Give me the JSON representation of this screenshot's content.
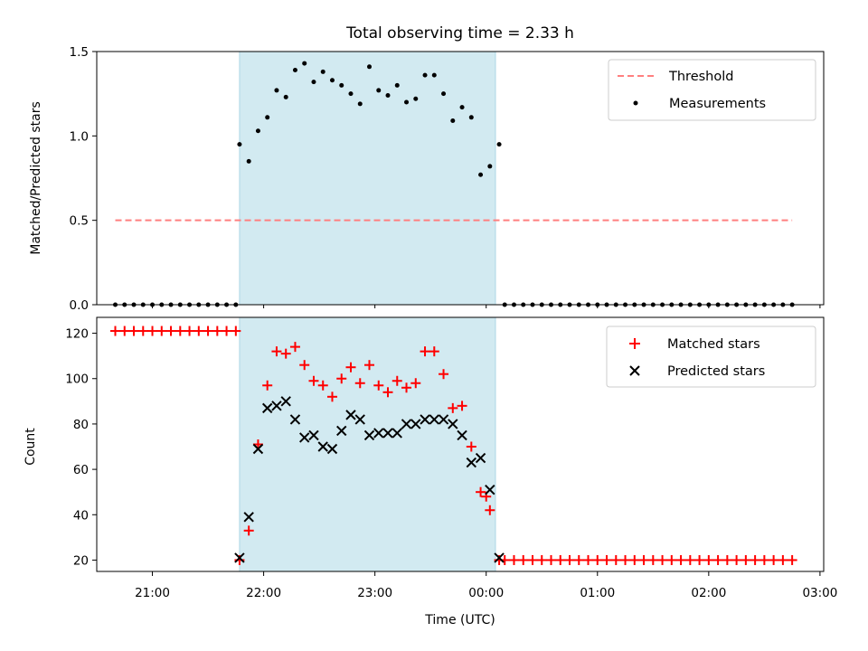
{
  "chart_data": [
    {
      "type": "scatter",
      "title": "Total observing time = 2.33 h",
      "xlabel": "",
      "ylabel": "Matched/Predicted stars",
      "ylim": [
        0,
        1.5
      ],
      "yticks": [
        "0.0",
        "0.5",
        "1.0",
        "1.5"
      ],
      "highlight_span": {
        "x": [
          "21:47",
          "00:05"
        ],
        "color": "#add8e6"
      },
      "threshold": {
        "name": "Threshold",
        "value": 0.5,
        "x": [
          "20:40",
          "02:45"
        ],
        "color": "#ff7f7f"
      },
      "series": [
        {
          "name": "Measurements",
          "color": "#000000",
          "marker": "dot",
          "x": [
            "20:40",
            "20:45",
            "20:50",
            "20:55",
            "21:00",
            "21:05",
            "21:10",
            "21:15",
            "21:20",
            "21:25",
            "21:30",
            "21:35",
            "21:40",
            "21:45",
            "21:47",
            "21:52",
            "21:57",
            "22:02",
            "22:07",
            "22:12",
            "22:17",
            "22:22",
            "22:27",
            "22:32",
            "22:37",
            "22:42",
            "22:47",
            "22:52",
            "22:57",
            "23:02",
            "23:07",
            "23:12",
            "23:17",
            "23:22",
            "23:27",
            "23:32",
            "23:37",
            "23:42",
            "23:47",
            "23:52",
            "23:57",
            "00:02",
            "00:07",
            "00:10",
            "00:15",
            "00:20",
            "00:25",
            "00:30",
            "00:35",
            "00:40",
            "00:45",
            "00:50",
            "00:55",
            "01:00",
            "01:05",
            "01:10",
            "01:15",
            "01:20",
            "01:25",
            "01:30",
            "01:35",
            "01:40",
            "01:45",
            "01:50",
            "01:55",
            "02:00",
            "02:05",
            "02:10",
            "02:15",
            "02:20",
            "02:25",
            "02:30",
            "02:35",
            "02:40",
            "02:45"
          ],
          "y": [
            0,
            0,
            0,
            0,
            0,
            0,
            0,
            0,
            0,
            0,
            0,
            0,
            0,
            0,
            0.95,
            0.85,
            1.03,
            1.11,
            1.27,
            1.23,
            1.39,
            1.43,
            1.32,
            1.38,
            1.33,
            1.3,
            1.25,
            1.19,
            1.41,
            1.27,
            1.24,
            1.3,
            1.2,
            1.22,
            1.36,
            1.36,
            1.25,
            1.09,
            1.17,
            1.11,
            0.77,
            0.82,
            0.95,
            0,
            0,
            0,
            0,
            0,
            0,
            0,
            0,
            0,
            0,
            0,
            0,
            0,
            0,
            0,
            0,
            0,
            0,
            0,
            0,
            0,
            0,
            0,
            0,
            0,
            0,
            0,
            0,
            0,
            0,
            0,
            0
          ]
        }
      ],
      "legend": {
        "position": "top-right",
        "entries": [
          "Threshold",
          "Measurements"
        ]
      }
    },
    {
      "type": "scatter",
      "title": "",
      "xlabel": "Time (UTC)",
      "ylabel": "Count",
      "ylim": [
        15,
        127
      ],
      "yticks": [
        "20",
        "40",
        "60",
        "80",
        "100",
        "120"
      ],
      "xticks": [
        "21:00",
        "22:00",
        "23:00",
        "00:00",
        "01:00",
        "02:00",
        "03:00"
      ],
      "xlim": [
        "20:30",
        "03:02"
      ],
      "highlight_span": {
        "x": [
          "21:47",
          "00:05"
        ],
        "color": "#add8e6"
      },
      "series": [
        {
          "name": "Matched stars",
          "color": "#ff0000",
          "marker": "plus",
          "x": [
            "20:40",
            "20:45",
            "20:50",
            "20:55",
            "21:00",
            "21:05",
            "21:10",
            "21:15",
            "21:20",
            "21:25",
            "21:30",
            "21:35",
            "21:40",
            "21:45",
            "21:47",
            "21:52",
            "21:57",
            "22:02",
            "22:07",
            "22:12",
            "22:17",
            "22:22",
            "22:27",
            "22:32",
            "22:37",
            "22:42",
            "22:47",
            "22:52",
            "22:57",
            "23:02",
            "23:07",
            "23:12",
            "23:17",
            "23:22",
            "23:27",
            "23:32",
            "23:37",
            "23:42",
            "23:47",
            "23:52",
            "23:57",
            "00:00",
            "00:02",
            "00:07",
            "00:10",
            "00:15",
            "00:20",
            "00:25",
            "00:30",
            "00:35",
            "00:40",
            "00:45",
            "00:50",
            "00:55",
            "01:00",
            "01:05",
            "01:10",
            "01:15",
            "01:20",
            "01:25",
            "01:30",
            "01:35",
            "01:40",
            "01:45",
            "01:50",
            "01:55",
            "02:00",
            "02:05",
            "02:10",
            "02:15",
            "02:20",
            "02:25",
            "02:30",
            "02:35",
            "02:40",
            "02:45"
          ],
          "y": [
            121,
            121,
            121,
            121,
            121,
            121,
            121,
            121,
            121,
            121,
            121,
            121,
            121,
            121,
            20,
            33,
            71,
            97,
            112,
            111,
            114,
            106,
            99,
            97,
            92,
            100,
            105,
            98,
            106,
            97,
            94,
            99,
            96,
            98,
            112,
            112,
            102,
            87,
            88,
            70,
            50,
            48,
            42,
            20,
            20,
            20,
            20,
            20,
            20,
            20,
            20,
            20,
            20,
            20,
            20,
            20,
            20,
            20,
            20,
            20,
            20,
            20,
            20,
            20,
            20,
            20,
            20,
            20,
            20,
            20,
            20,
            20,
            20,
            20,
            20,
            20
          ]
        },
        {
          "name": "Predicted stars",
          "color": "#000000",
          "marker": "x",
          "x": [
            "21:47",
            "21:52",
            "21:57",
            "22:02",
            "22:07",
            "22:12",
            "22:17",
            "22:22",
            "22:27",
            "22:32",
            "22:37",
            "22:42",
            "22:47",
            "22:52",
            "22:57",
            "23:02",
            "23:07",
            "23:12",
            "23:17",
            "23:22",
            "23:27",
            "23:32",
            "23:37",
            "23:42",
            "23:47",
            "23:52",
            "23:57",
            "00:02",
            "00:07"
          ],
          "y": [
            21,
            39,
            69,
            87,
            88,
            90,
            82,
            74,
            75,
            70,
            69,
            77,
            84,
            82,
            75,
            76,
            76,
            76,
            80,
            80,
            82,
            82,
            82,
            80,
            75,
            63,
            65,
            51,
            21
          ]
        }
      ],
      "legend": {
        "position": "top-right",
        "entries": [
          "Matched stars",
          "Predicted stars"
        ]
      }
    }
  ]
}
